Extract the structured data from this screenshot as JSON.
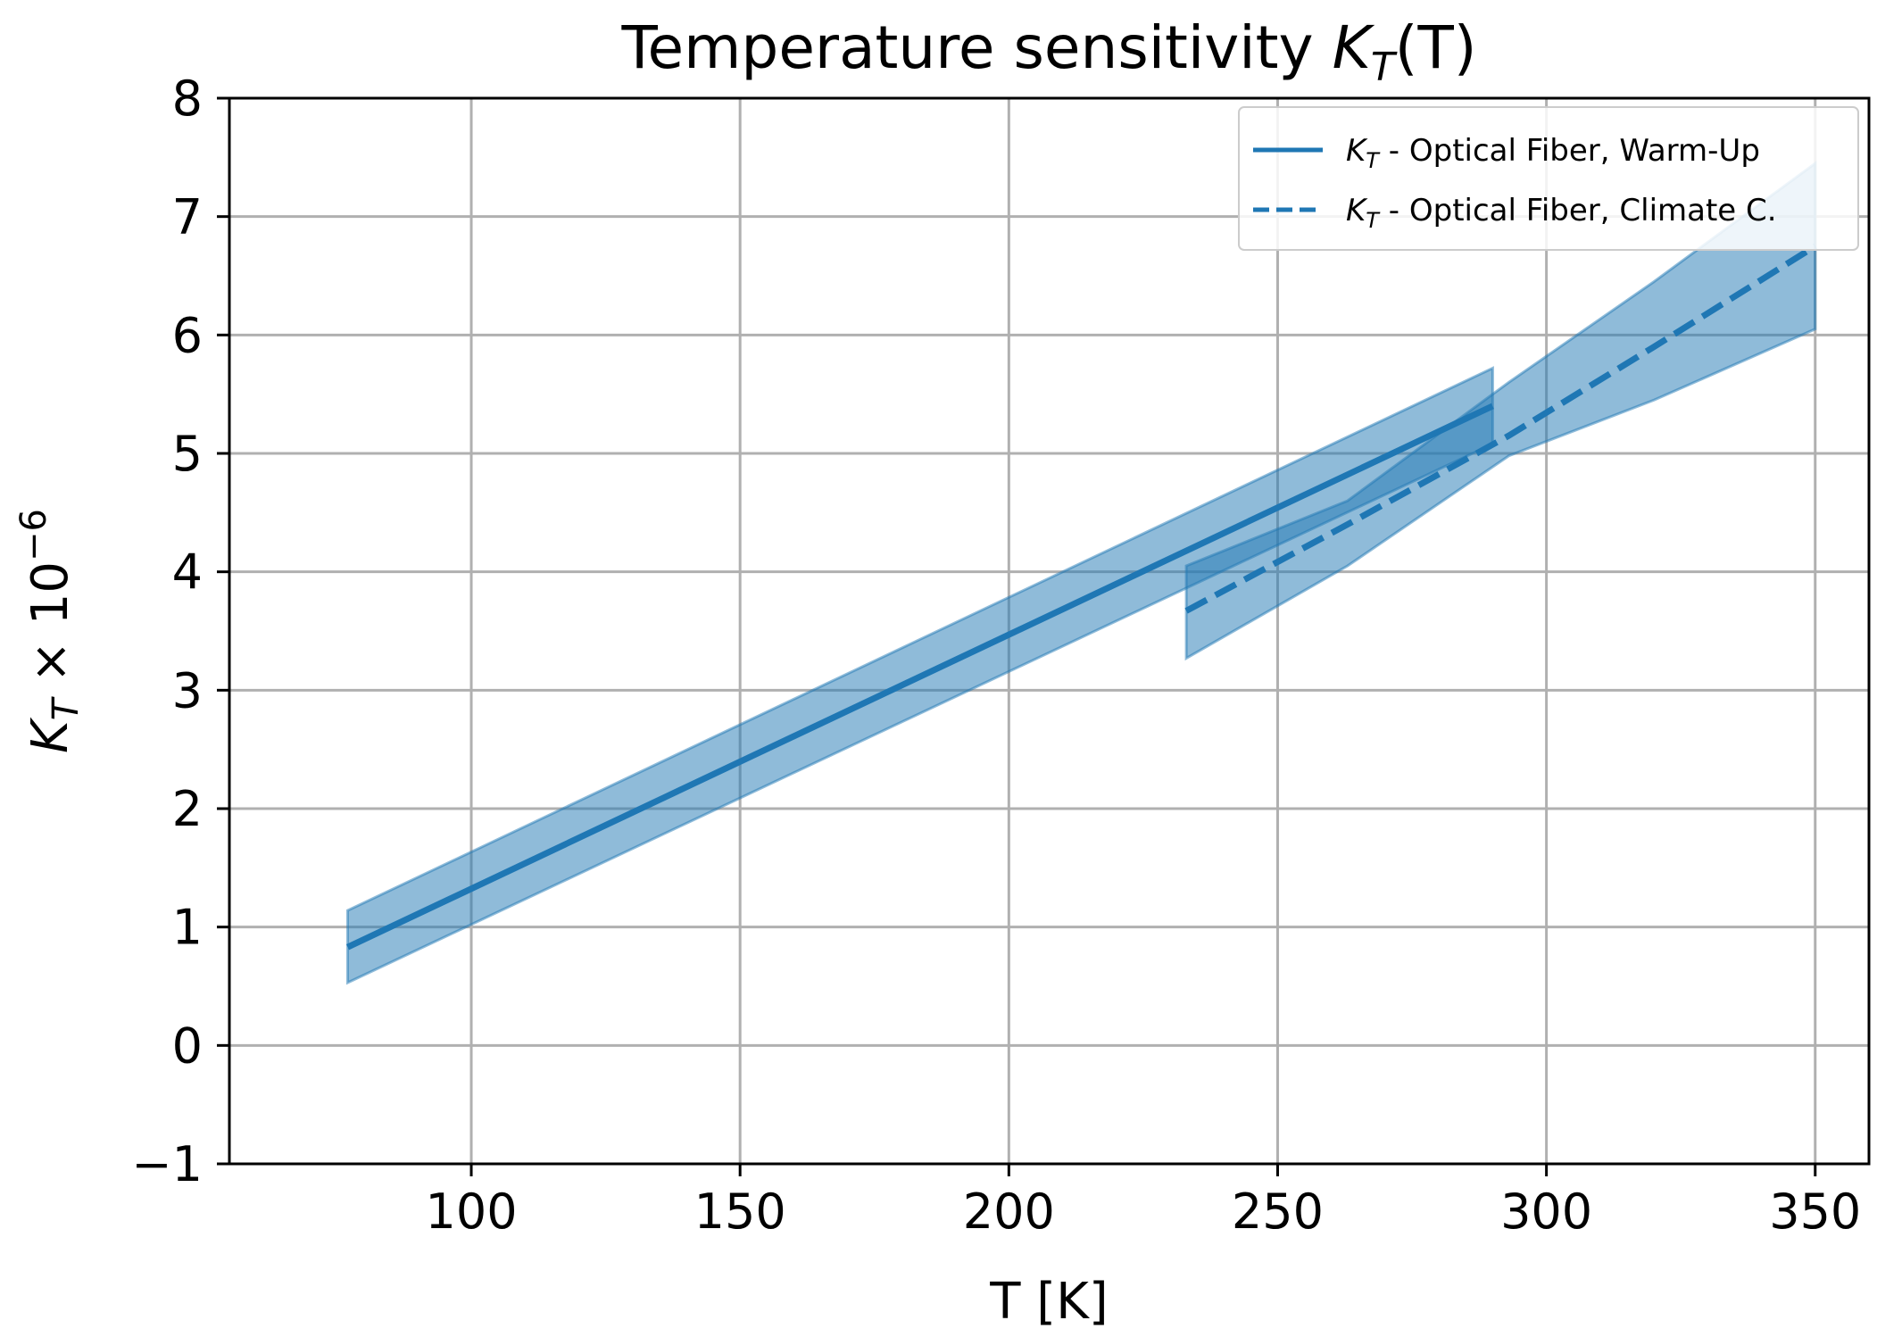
{
  "chart_data": {
    "type": "line",
    "title": "Temperature sensitivity K_T(T)",
    "title_parts": {
      "prefix": "Temperature sensitivity ",
      "k": "K",
      "sub": "T",
      "suffix": "(T)"
    },
    "xlabel": "T [K]",
    "ylabel_parts": {
      "k": "K",
      "sub": "T",
      "mid": " × 10",
      "sup": "−6"
    },
    "xlim": [
      55,
      360
    ],
    "ylim": [
      -1,
      8
    ],
    "x_ticks": [
      100,
      150,
      200,
      250,
      300,
      350
    ],
    "y_ticks": [
      -1,
      0,
      1,
      2,
      3,
      4,
      5,
      6,
      7,
      8
    ],
    "y_tick_labels": [
      "−1",
      "0",
      "1",
      "2",
      "3",
      "4",
      "5",
      "6",
      "7",
      "8"
    ],
    "grid": true,
    "legend_position": "upper right",
    "color": "#1f77b4",
    "series": [
      {
        "name": "Optical Fiber, Warm-Up",
        "legend_k": "K",
        "legend_sub": "T",
        "legend_rest": " - Optical Fiber, Warm-Up",
        "style": "solid",
        "x": [
          77,
          290
        ],
        "y": [
          0.83,
          5.4
        ],
        "lower": [
          0.53,
          5.08
        ],
        "upper": [
          1.14,
          5.72
        ]
      },
      {
        "name": "Optical Fiber, Climate C.",
        "legend_k": "K",
        "legend_sub": "T",
        "legend_rest": " - Optical Fiber, Climate C.",
        "style": "dashed",
        "x": [
          233,
          263,
          293,
          320,
          350
        ],
        "y": [
          3.67,
          4.4,
          5.15,
          5.9,
          6.75
        ],
        "lower": [
          3.27,
          4.05,
          4.98,
          5.45,
          6.05
        ],
        "upper": [
          4.05,
          4.6,
          5.6,
          6.45,
          7.45
        ]
      }
    ]
  }
}
